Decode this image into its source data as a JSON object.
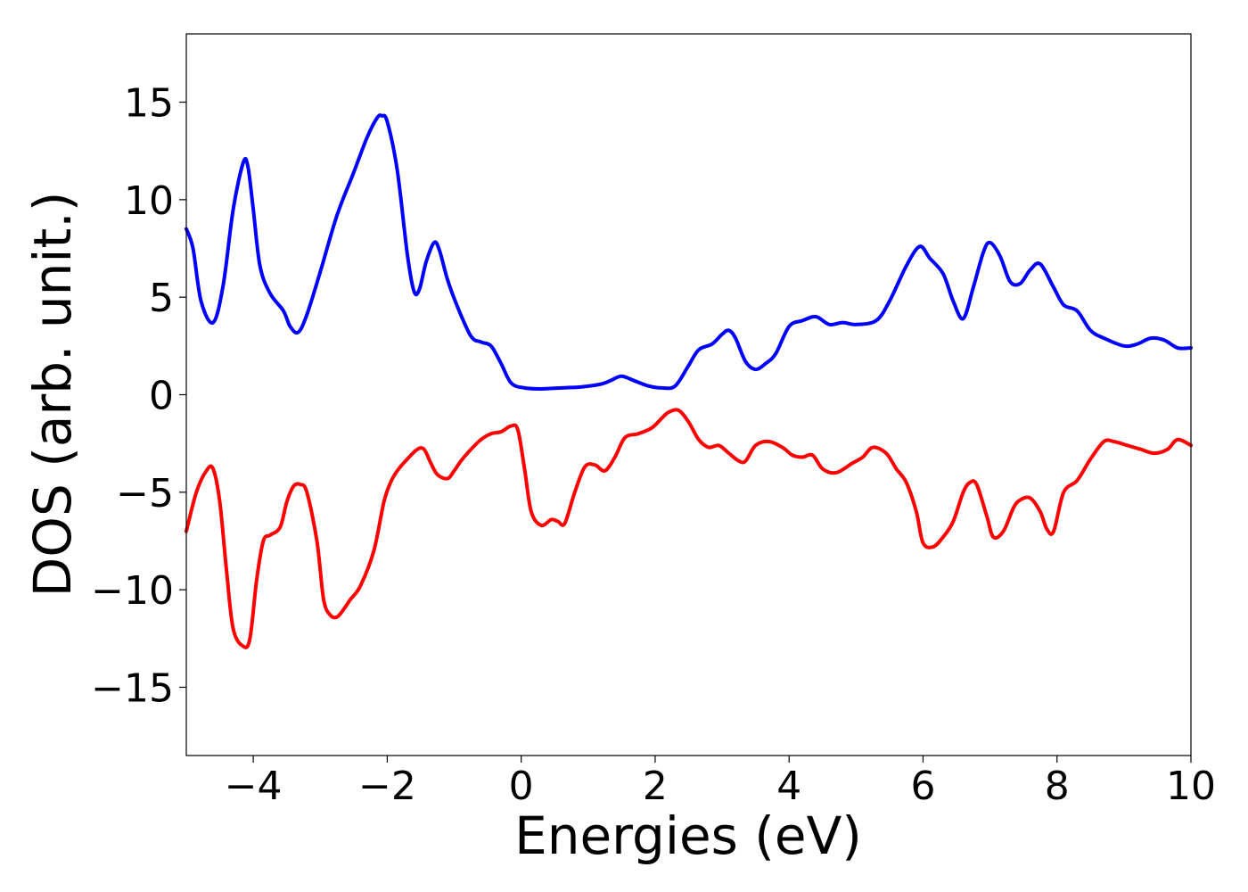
{
  "chart_data": {
    "type": "line",
    "title": "",
    "xlabel": "Energies (eV)",
    "ylabel": "DOS (arb. unit.)",
    "xlim": [
      -5,
      10
    ],
    "ylim": [
      -18.5,
      18.5
    ],
    "xticks": [
      -4,
      -2,
      0,
      2,
      4,
      6,
      8,
      10
    ],
    "xtick_labels": [
      "−4",
      "−2",
      "0",
      "2",
      "4",
      "6",
      "8",
      "10"
    ],
    "yticks": [
      15,
      10,
      5,
      0,
      -5,
      -10,
      -15
    ],
    "ytick_labels": [
      "15",
      "10",
      "5",
      "0",
      "−5",
      "−10",
      "−15"
    ],
    "grid": false,
    "legend": "none",
    "series": [
      {
        "color": "#0000ff",
        "x": [
          -5.0,
          -4.9,
          -4.78,
          -4.6,
          -4.45,
          -4.3,
          -4.15,
          -4.08,
          -4.0,
          -3.9,
          -3.75,
          -3.55,
          -3.45,
          -3.33,
          -3.2,
          -3.0,
          -2.75,
          -2.5,
          -2.3,
          -2.15,
          -2.08,
          -2.0,
          -1.85,
          -1.7,
          -1.6,
          -1.52,
          -1.42,
          -1.3,
          -1.22,
          -1.1,
          -0.95,
          -0.75,
          -0.6,
          -0.45,
          -0.3,
          -0.15,
          0.05,
          0.3,
          0.6,
          0.9,
          1.2,
          1.35,
          1.5,
          1.7,
          1.9,
          2.1,
          2.3,
          2.5,
          2.65,
          2.85,
          3.0,
          3.1,
          3.2,
          3.35,
          3.5,
          3.65,
          3.8,
          4.0,
          4.2,
          4.4,
          4.6,
          4.8,
          5.0,
          5.3,
          5.5,
          5.75,
          5.95,
          6.1,
          6.3,
          6.45,
          6.6,
          6.75,
          6.9,
          7.0,
          7.15,
          7.3,
          7.45,
          7.6,
          7.75,
          7.95,
          8.1,
          8.3,
          8.5,
          8.7,
          9.0,
          9.2,
          9.4,
          9.6,
          9.8,
          10.0
        ],
        "y": [
          8.5,
          7.5,
          4.8,
          3.7,
          5.6,
          9.5,
          11.9,
          11.7,
          9.5,
          6.6,
          5.2,
          4.3,
          3.5,
          3.2,
          4.1,
          6.3,
          9.2,
          11.4,
          13.2,
          14.2,
          14.3,
          14.0,
          11.5,
          7.2,
          5.3,
          5.4,
          6.8,
          7.8,
          7.4,
          5.9,
          4.5,
          3.0,
          2.7,
          2.5,
          1.6,
          0.6,
          0.35,
          0.3,
          0.35,
          0.4,
          0.55,
          0.75,
          0.95,
          0.7,
          0.45,
          0.35,
          0.45,
          1.5,
          2.3,
          2.6,
          3.1,
          3.3,
          2.9,
          1.7,
          1.3,
          1.6,
          2.1,
          3.5,
          3.8,
          4.0,
          3.6,
          3.7,
          3.6,
          3.8,
          4.8,
          6.6,
          7.6,
          7.0,
          6.2,
          4.8,
          3.9,
          5.5,
          7.3,
          7.8,
          7.1,
          5.8,
          5.7,
          6.4,
          6.7,
          5.5,
          4.6,
          4.3,
          3.3,
          2.9,
          2.5,
          2.6,
          2.9,
          2.8,
          2.4,
          2.4
        ]
      },
      {
        "color": "#ff0000",
        "x": [
          -5.0,
          -4.85,
          -4.7,
          -4.6,
          -4.5,
          -4.4,
          -4.3,
          -4.15,
          -4.05,
          -3.95,
          -3.85,
          -3.75,
          -3.6,
          -3.5,
          -3.4,
          -3.3,
          -3.2,
          -3.05,
          -2.95,
          -2.85,
          -2.75,
          -2.65,
          -2.55,
          -2.4,
          -2.2,
          -2.05,
          -1.95,
          -1.85,
          -1.7,
          -1.55,
          -1.45,
          -1.35,
          -1.25,
          -1.1,
          -1.0,
          -0.9,
          -0.75,
          -0.6,
          -0.45,
          -0.3,
          -0.15,
          -0.05,
          0.05,
          0.15,
          0.3,
          0.45,
          0.55,
          0.65,
          0.8,
          0.95,
          1.1,
          1.25,
          1.4,
          1.55,
          1.75,
          1.95,
          2.1,
          2.2,
          2.35,
          2.5,
          2.65,
          2.8,
          2.95,
          3.1,
          3.25,
          3.35,
          3.5,
          3.7,
          3.9,
          4.05,
          4.2,
          4.35,
          4.5,
          4.7,
          4.95,
          5.1,
          5.25,
          5.45,
          5.6,
          5.75,
          5.9,
          6.0,
          6.15,
          6.3,
          6.45,
          6.6,
          6.7,
          6.8,
          6.95,
          7.05,
          7.2,
          7.35,
          7.45,
          7.6,
          7.75,
          7.85,
          7.95,
          8.1,
          8.3,
          8.5,
          8.7,
          8.85,
          9.05,
          9.25,
          9.45,
          9.65,
          9.8,
          10.0
        ],
        "y": [
          -7.0,
          -5.0,
          -3.9,
          -3.8,
          -5.5,
          -9.0,
          -12.0,
          -12.9,
          -12.5,
          -9.5,
          -7.5,
          -7.2,
          -6.8,
          -5.5,
          -4.7,
          -4.6,
          -5.0,
          -7.5,
          -10.5,
          -11.3,
          -11.4,
          -11.0,
          -10.5,
          -9.8,
          -8.0,
          -5.5,
          -4.5,
          -3.9,
          -3.3,
          -2.8,
          -2.8,
          -3.5,
          -4.1,
          -4.3,
          -3.9,
          -3.4,
          -2.8,
          -2.3,
          -2.0,
          -1.9,
          -1.6,
          -1.8,
          -3.8,
          -6.0,
          -6.7,
          -6.4,
          -6.5,
          -6.6,
          -5.0,
          -3.7,
          -3.6,
          -3.9,
          -3.2,
          -2.2,
          -2.0,
          -1.7,
          -1.2,
          -0.9,
          -0.8,
          -1.4,
          -2.3,
          -2.7,
          -2.6,
          -3.0,
          -3.4,
          -3.4,
          -2.6,
          -2.4,
          -2.7,
          -3.1,
          -3.2,
          -3.1,
          -3.8,
          -4.0,
          -3.5,
          -3.2,
          -2.7,
          -3.0,
          -3.8,
          -4.5,
          -6.0,
          -7.6,
          -7.8,
          -7.3,
          -6.5,
          -5.0,
          -4.5,
          -4.6,
          -6.2,
          -7.3,
          -7.0,
          -5.8,
          -5.4,
          -5.3,
          -6.0,
          -6.9,
          -7.0,
          -5.0,
          -4.4,
          -3.3,
          -2.4,
          -2.4,
          -2.6,
          -2.8,
          -3.0,
          -2.8,
          -2.3,
          -2.6
        ]
      }
    ]
  }
}
